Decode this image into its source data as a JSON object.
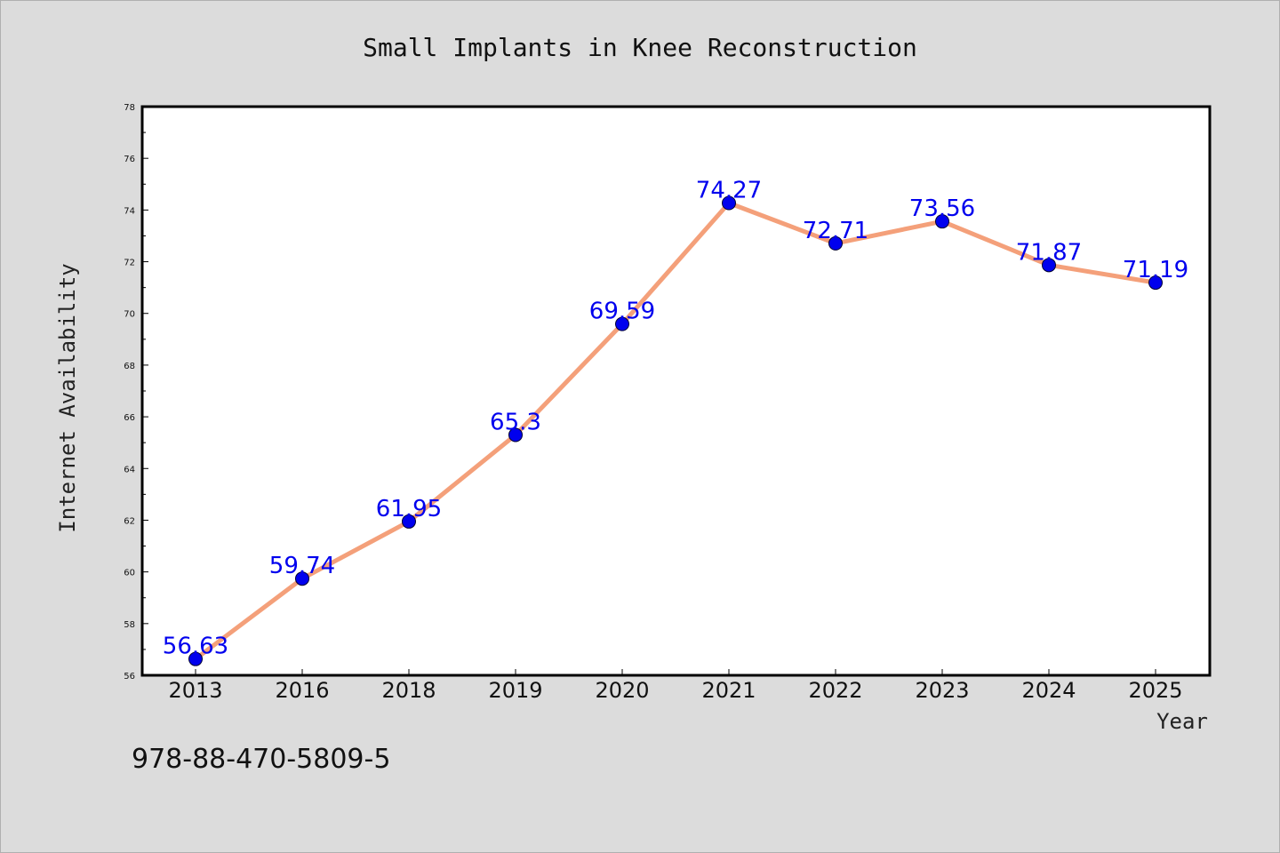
{
  "chart_data": {
    "type": "line",
    "title": "Small Implants in Knee Reconstruction",
    "xlabel": "Year",
    "ylabel": "Internet Availability",
    "categories": [
      "2013",
      "2016",
      "2018",
      "2019",
      "2020",
      "2021",
      "2022",
      "2023",
      "2024",
      "2025"
    ],
    "series": [
      {
        "values": [
          56.63,
          59.74,
          61.95,
          65.3,
          69.59,
          74.27,
          72.71,
          73.56,
          71.87,
          71.19
        ],
        "labels": [
          "56.63",
          "59.74",
          "61.95",
          "65.3",
          "69.59",
          "74.27",
          "72.71",
          "73.56",
          "71.87",
          "71.19"
        ]
      }
    ],
    "ylim": [
      56,
      78
    ],
    "yticks": [
      56,
      58,
      60,
      62,
      64,
      66,
      68,
      70,
      72,
      74,
      76,
      78
    ],
    "grid": false,
    "line_color": "#f4a07a",
    "marker_color": "#0000ee",
    "label_color": "#0000ee",
    "plot_background": "#ffffff",
    "figure_background": "#dcdcdc"
  },
  "footer": {
    "isbn": "978-88-470-5809-5"
  }
}
